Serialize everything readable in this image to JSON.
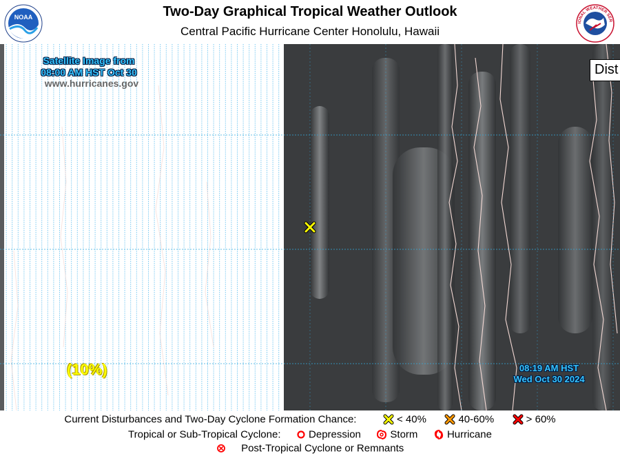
{
  "header": {
    "title": "Two-Day Graphical Tropical Weather Outlook",
    "subtitle": "Central Pacific Hurricane Center  Honolulu, Hawaii",
    "left_logo": "noaa-logo",
    "right_logo": "national-weather-service-logo",
    "right_logo_text": "NATIONAL WEATHER SERVICE"
  },
  "map": {
    "satellite_label_line1": "Satellite Image from",
    "satellite_label_line2": "08:00 AM HST Oct 30",
    "website": "www.hurricanes.gov",
    "timestamp_line1": "08:19 AM HST",
    "timestamp_line2": "Wed Oct 30 2024",
    "disturbance_box_text": "Dist",
    "disturbance_chance": "(10%)",
    "disturbance_marker_icon": "yellow-x-icon",
    "colors": {
      "label_blue": "#36c4ff",
      "chance_yellow": "#ffff00",
      "grid": "#33aadd",
      "low_x": "#ffff00",
      "mid_x": "#ff9900",
      "high_x": "#ff0000",
      "cyclone_red": "#ff0000"
    }
  },
  "legend": {
    "row1_label": "Current Disturbances and Two-Day Cyclone Formation Chance:",
    "low": "< 40%",
    "medium": "40-60%",
    "high": "> 60%",
    "row2_label": "Tropical or Sub-Tropical Cyclone:",
    "depression": "Depression",
    "storm": "Storm",
    "hurricane": "Hurricane",
    "row3_label": "Post-Tropical Cyclone or Remnants"
  }
}
